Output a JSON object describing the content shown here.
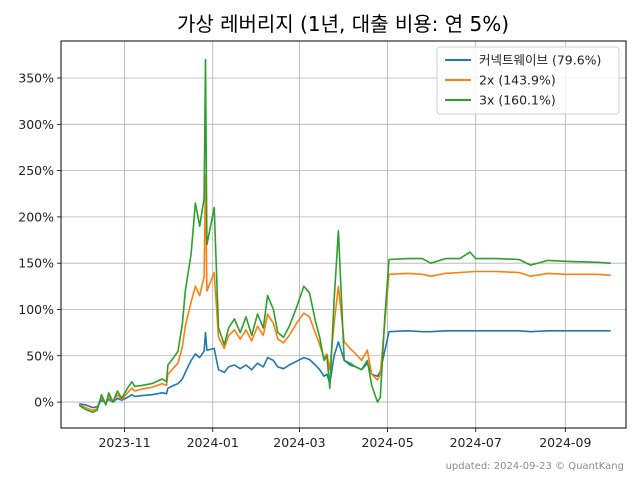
{
  "chart_data": {
    "type": "line",
    "title": "가상 레버리지 (1년, 대출 비용: 연 5%)",
    "xlabel": "",
    "ylabel": "",
    "x_ticks": [
      "2023-11",
      "2024-01",
      "2024-03",
      "2024-05",
      "2024-07",
      "2024-09"
    ],
    "y_ticks": [
      "0%",
      "50%",
      "100%",
      "150%",
      "200%",
      "250%",
      "300%",
      "350%"
    ],
    "xlim": [
      "2023-09-18",
      "2024-10-13"
    ],
    "ylim": [
      -28,
      390
    ],
    "grid": true,
    "legend_position": "top-right",
    "footer": "updated: 2024-09-23 © QuantKang",
    "series": [
      {
        "name": "커넥트웨이브 (79.6%)",
        "color": "#1f77b4",
        "points": [
          [
            "2023-10-01",
            -2
          ],
          [
            "2023-10-05",
            -3
          ],
          [
            "2023-10-10",
            -6
          ],
          [
            "2023-10-13",
            -5
          ],
          [
            "2023-10-16",
            2
          ],
          [
            "2023-10-19",
            -1
          ],
          [
            "2023-10-21",
            3
          ],
          [
            "2023-10-24",
            0
          ],
          [
            "2023-10-27",
            4
          ],
          [
            "2023-10-30",
            2
          ],
          [
            "2023-11-03",
            5
          ],
          [
            "2023-11-06",
            8
          ],
          [
            "2023-11-08",
            6
          ],
          [
            "2023-11-13",
            7
          ],
          [
            "2023-11-20",
            8
          ],
          [
            "2023-11-27",
            10
          ],
          [
            "2023-11-30",
            9
          ],
          [
            "2023-12-01",
            15
          ],
          [
            "2023-12-05",
            18
          ],
          [
            "2023-12-08",
            20
          ],
          [
            "2023-12-11",
            25
          ],
          [
            "2023-12-13",
            32
          ],
          [
            "2023-12-17",
            45
          ],
          [
            "2023-12-20",
            52
          ],
          [
            "2023-12-23",
            48
          ],
          [
            "2023-12-26",
            55
          ],
          [
            "2023-12-27",
            75
          ],
          [
            "2023-12-28",
            56
          ],
          [
            "2024-01-02",
            58
          ],
          [
            "2024-01-05",
            35
          ],
          [
            "2024-01-09",
            32
          ],
          [
            "2024-01-12",
            38
          ],
          [
            "2024-01-16",
            40
          ],
          [
            "2024-01-20",
            36
          ],
          [
            "2024-01-24",
            40
          ],
          [
            "2024-01-28",
            35
          ],
          [
            "2024-02-01",
            42
          ],
          [
            "2024-02-05",
            38
          ],
          [
            "2024-02-08",
            48
          ],
          [
            "2024-02-12",
            45
          ],
          [
            "2024-02-15",
            38
          ],
          [
            "2024-02-19",
            36
          ],
          [
            "2024-02-23",
            40
          ],
          [
            "2024-02-28",
            44
          ],
          [
            "2024-03-04",
            48
          ],
          [
            "2024-03-08",
            46
          ],
          [
            "2024-03-12",
            40
          ],
          [
            "2024-03-15",
            35
          ],
          [
            "2024-03-18",
            28
          ],
          [
            "2024-03-20",
            30
          ],
          [
            "2024-03-22",
            20
          ],
          [
            "2024-03-25",
            50
          ],
          [
            "2024-03-28",
            65
          ],
          [
            "2024-04-01",
            45
          ],
          [
            "2024-04-05",
            40
          ],
          [
            "2024-04-09",
            38
          ],
          [
            "2024-04-13",
            35
          ],
          [
            "2024-04-17",
            42
          ],
          [
            "2024-04-20",
            30
          ],
          [
            "2024-04-24",
            28
          ],
          [
            "2024-04-26",
            33
          ],
          [
            "2024-04-29",
            55
          ],
          [
            "2024-05-02",
            76
          ],
          [
            "2024-05-15",
            77
          ],
          [
            "2024-05-25",
            76
          ],
          [
            "2024-05-31",
            76
          ],
          [
            "2024-06-10",
            77
          ],
          [
            "2024-06-20",
            77
          ],
          [
            "2024-07-01",
            77
          ],
          [
            "2024-07-15",
            77
          ],
          [
            "2024-07-31",
            77
          ],
          [
            "2024-08-08",
            76
          ],
          [
            "2024-08-20",
            77
          ],
          [
            "2024-09-01",
            77
          ],
          [
            "2024-09-23",
            77
          ],
          [
            "2024-10-02",
            77
          ]
        ]
      },
      {
        "name": "2x (143.9%)",
        "color": "#ff7f0e",
        "points": [
          [
            "2023-10-01",
            -3
          ],
          [
            "2023-10-05",
            -6
          ],
          [
            "2023-10-10",
            -9
          ],
          [
            "2023-10-13",
            -7
          ],
          [
            "2023-10-16",
            5
          ],
          [
            "2023-10-19",
            -2
          ],
          [
            "2023-10-21",
            6
          ],
          [
            "2023-10-24",
            0
          ],
          [
            "2023-10-27",
            8
          ],
          [
            "2023-10-30",
            3
          ],
          [
            "2023-11-03",
            10
          ],
          [
            "2023-11-06",
            15
          ],
          [
            "2023-11-08",
            12
          ],
          [
            "2023-11-13",
            14
          ],
          [
            "2023-11-20",
            16
          ],
          [
            "2023-11-27",
            20
          ],
          [
            "2023-11-30",
            18
          ],
          [
            "2023-12-01",
            30
          ],
          [
            "2023-12-05",
            37
          ],
          [
            "2023-12-08",
            42
          ],
          [
            "2023-12-11",
            60
          ],
          [
            "2023-12-13",
            82
          ],
          [
            "2023-12-17",
            108
          ],
          [
            "2023-12-20",
            125
          ],
          [
            "2023-12-23",
            115
          ],
          [
            "2023-12-26",
            135
          ],
          [
            "2023-12-27",
            245
          ],
          [
            "2023-12-28",
            120
          ],
          [
            "2024-01-02",
            140
          ],
          [
            "2024-01-05",
            70
          ],
          [
            "2024-01-09",
            58
          ],
          [
            "2024-01-12",
            72
          ],
          [
            "2024-01-16",
            78
          ],
          [
            "2024-01-20",
            68
          ],
          [
            "2024-01-24",
            78
          ],
          [
            "2024-01-28",
            66
          ],
          [
            "2024-02-01",
            82
          ],
          [
            "2024-02-05",
            72
          ],
          [
            "2024-02-08",
            95
          ],
          [
            "2024-02-12",
            85
          ],
          [
            "2024-02-15",
            68
          ],
          [
            "2024-02-19",
            64
          ],
          [
            "2024-02-23",
            72
          ],
          [
            "2024-02-28",
            85
          ],
          [
            "2024-03-04",
            96
          ],
          [
            "2024-03-08",
            92
          ],
          [
            "2024-03-12",
            75
          ],
          [
            "2024-03-15",
            62
          ],
          [
            "2024-03-18",
            48
          ],
          [
            "2024-03-20",
            52
          ],
          [
            "2024-03-22",
            35
          ],
          [
            "2024-03-25",
            85
          ],
          [
            "2024-03-28",
            125
          ],
          [
            "2024-04-01",
            65
          ],
          [
            "2024-04-05",
            58
          ],
          [
            "2024-04-09",
            52
          ],
          [
            "2024-04-13",
            45
          ],
          [
            "2024-04-17",
            56
          ],
          [
            "2024-04-20",
            30
          ],
          [
            "2024-04-24",
            24
          ],
          [
            "2024-04-26",
            30
          ],
          [
            "2024-04-29",
            85
          ],
          [
            "2024-05-02",
            138
          ],
          [
            "2024-05-15",
            139
          ],
          [
            "2024-05-25",
            138
          ],
          [
            "2024-05-31",
            136
          ],
          [
            "2024-06-10",
            139
          ],
          [
            "2024-06-20",
            140
          ],
          [
            "2024-07-01",
            141
          ],
          [
            "2024-07-15",
            141
          ],
          [
            "2024-07-31",
            140
          ],
          [
            "2024-08-08",
            136
          ],
          [
            "2024-08-20",
            139
          ],
          [
            "2024-09-01",
            138
          ],
          [
            "2024-09-23",
            138
          ],
          [
            "2024-10-02",
            137
          ]
        ]
      },
      {
        "name": "3x (160.1%)",
        "color": "#2ca02c",
        "points": [
          [
            "2023-10-01",
            -4
          ],
          [
            "2023-10-05",
            -8
          ],
          [
            "2023-10-10",
            -11
          ],
          [
            "2023-10-13",
            -9
          ],
          [
            "2023-10-16",
            8
          ],
          [
            "2023-10-19",
            -3
          ],
          [
            "2023-10-21",
            10
          ],
          [
            "2023-10-24",
            0
          ],
          [
            "2023-10-27",
            12
          ],
          [
            "2023-10-30",
            4
          ],
          [
            "2023-11-03",
            15
          ],
          [
            "2023-11-06",
            22
          ],
          [
            "2023-11-08",
            17
          ],
          [
            "2023-11-13",
            18
          ],
          [
            "2023-11-20",
            20
          ],
          [
            "2023-11-27",
            25
          ],
          [
            "2023-11-30",
            22
          ],
          [
            "2023-12-01",
            40
          ],
          [
            "2023-12-05",
            48
          ],
          [
            "2023-12-08",
            55
          ],
          [
            "2023-12-11",
            85
          ],
          [
            "2023-12-13",
            120
          ],
          [
            "2023-12-17",
            160
          ],
          [
            "2023-12-20",
            215
          ],
          [
            "2023-12-23",
            190
          ],
          [
            "2023-12-26",
            220
          ],
          [
            "2023-12-27",
            370
          ],
          [
            "2023-12-28",
            170
          ],
          [
            "2024-01-02",
            210
          ],
          [
            "2024-01-05",
            80
          ],
          [
            "2024-01-09",
            62
          ],
          [
            "2024-01-12",
            80
          ],
          [
            "2024-01-16",
            90
          ],
          [
            "2024-01-20",
            75
          ],
          [
            "2024-01-24",
            92
          ],
          [
            "2024-01-28",
            72
          ],
          [
            "2024-02-01",
            95
          ],
          [
            "2024-02-05",
            80
          ],
          [
            "2024-02-08",
            115
          ],
          [
            "2024-02-12",
            100
          ],
          [
            "2024-02-15",
            75
          ],
          [
            "2024-02-19",
            70
          ],
          [
            "2024-02-23",
            82
          ],
          [
            "2024-02-28",
            102
          ],
          [
            "2024-03-04",
            125
          ],
          [
            "2024-03-08",
            118
          ],
          [
            "2024-03-12",
            88
          ],
          [
            "2024-03-15",
            70
          ],
          [
            "2024-03-18",
            45
          ],
          [
            "2024-03-20",
            50
          ],
          [
            "2024-03-22",
            15
          ],
          [
            "2024-03-25",
            110
          ],
          [
            "2024-03-28",
            185
          ],
          [
            "2024-04-01",
            45
          ],
          [
            "2024-04-05",
            42
          ],
          [
            "2024-04-09",
            38
          ],
          [
            "2024-04-13",
            35
          ],
          [
            "2024-04-17",
            45
          ],
          [
            "2024-04-20",
            18
          ],
          [
            "2024-04-24",
            0
          ],
          [
            "2024-04-26",
            5
          ],
          [
            "2024-04-29",
            90
          ],
          [
            "2024-05-02",
            154
          ],
          [
            "2024-05-15",
            155
          ],
          [
            "2024-05-25",
            155
          ],
          [
            "2024-05-31",
            150
          ],
          [
            "2024-06-10",
            155
          ],
          [
            "2024-06-20",
            155
          ],
          [
            "2024-06-27",
            162
          ],
          [
            "2024-07-01",
            155
          ],
          [
            "2024-07-15",
            155
          ],
          [
            "2024-07-31",
            154
          ],
          [
            "2024-08-08",
            148
          ],
          [
            "2024-08-20",
            153
          ],
          [
            "2024-09-01",
            152
          ],
          [
            "2024-09-23",
            151
          ],
          [
            "2024-10-02",
            150
          ]
        ]
      }
    ]
  }
}
